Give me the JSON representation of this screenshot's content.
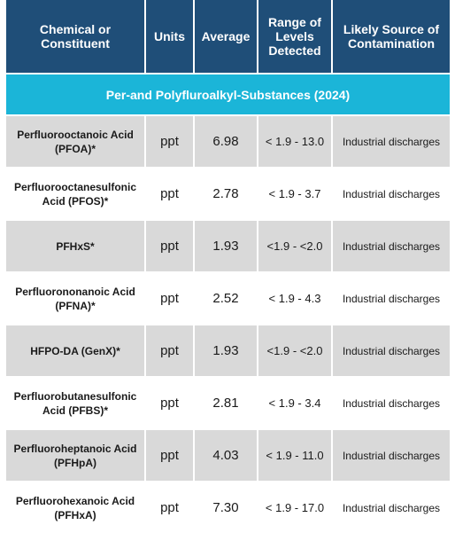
{
  "header": {
    "col1": "Chemical or Constituent",
    "col2": "Units",
    "col3": "Average",
    "col4": "Range of Levels Detected",
    "col5": "Likely Source of Contamination"
  },
  "section_title": "Per-and Polyfluroalkyl-Substances (2024)",
  "rows": [
    {
      "chemical": "Perfluorooctanoic Acid (PFOA)*",
      "units": "ppt",
      "average": "6.98",
      "range": "< 1.9 - 13.0",
      "source": "Industrial discharges"
    },
    {
      "chemical": "Perfluorooctanesulfonic Acid (PFOS)*",
      "units": "ppt",
      "average": "2.78",
      "range": "< 1.9 - 3.7",
      "source": "Industrial discharges"
    },
    {
      "chemical": "PFHxS*",
      "units": "ppt",
      "average": "1.93",
      "range": "<1.9 - <2.0",
      "source": "Industrial discharges"
    },
    {
      "chemical": "Perfluorononanoic Acid (PFNA)*",
      "units": "ppt",
      "average": "2.52",
      "range": "< 1.9 - 4.3",
      "source": "Industrial discharges"
    },
    {
      "chemical": "HFPO-DA (GenX)*",
      "units": "ppt",
      "average": "1.93",
      "range": "<1.9 - <2.0",
      "source": "Industrial discharges"
    },
    {
      "chemical": "Perfluorobutanesulfonic Acid (PFBS)*",
      "units": "ppt",
      "average": "2.81",
      "range": "< 1.9 - 3.4",
      "source": "Industrial discharges"
    },
    {
      "chemical": "Perfluoroheptanoic Acid (PFHpA)",
      "units": "ppt",
      "average": "4.03",
      "range": "< 1.9 - 11.0",
      "source": "Industrial discharges"
    },
    {
      "chemical": "Perfluorohexanoic Acid (PFHxA)",
      "units": "ppt",
      "average": "7.30",
      "range": "< 1.9 - 17.0",
      "source": "Industrial discharges"
    }
  ]
}
